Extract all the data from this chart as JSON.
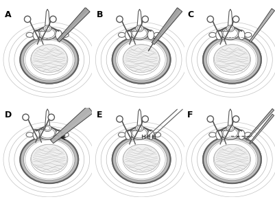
{
  "panels": [
    "A",
    "B",
    "C",
    "D",
    "E",
    "F"
  ],
  "label_fontsize": 9,
  "label_fontweight": "bold",
  "background_color": "#ffffff",
  "fig_width": 4.01,
  "fig_height": 3.03,
  "dpi": 100,
  "panel_bg": "#f5f5f5",
  "disc_outer_color": "#cccccc",
  "disc_ring_color": "#aaaaaa",
  "nucleus_color": "#e8e8e8",
  "tool_color": "#888888",
  "tool_dark": "#555555",
  "border_color": "#333333"
}
